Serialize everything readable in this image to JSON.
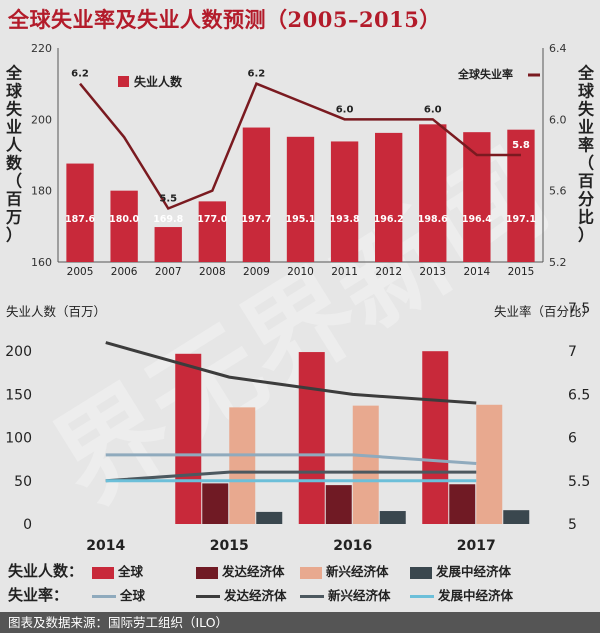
{
  "title": "全球失业率及失业人数预测（2005–2015）",
  "footer": "图表及数据来源：国际劳工组织（ILO）",
  "watermark": "界无界新闻",
  "colors": {
    "global": "#c8293a",
    "developed": "#701a24",
    "emerging": "#e8a98f",
    "developing": "#3a474e",
    "rate_global": "#8faabd",
    "rate_developed": "#3c3c3c",
    "rate_emerging": "#4c585f",
    "rate_developing": "#6cbfd9",
    "line_top": "#7a1a20"
  },
  "chart_data": [
    {
      "type": "bar+line",
      "categories": [
        "2005",
        "2006",
        "2007",
        "2008",
        "2009",
        "2010",
        "2011",
        "2012",
        "2013",
        "2014",
        "2015"
      ],
      "series": [
        {
          "name": "失业人数",
          "kind": "bar",
          "axis": "left",
          "values": [
            187.6,
            180.0,
            169.8,
            177.0,
            197.7,
            195.1,
            193.8,
            196.2,
            198.6,
            196.4,
            197.1
          ]
        },
        {
          "name": "全球失业率",
          "kind": "line",
          "axis": "right",
          "values": [
            6.2,
            5.9,
            5.5,
            5.6,
            6.2,
            6.1,
            6.0,
            6.0,
            6.0,
            5.8,
            5.8
          ]
        }
      ],
      "line_labels": [
        {
          "category": "2005",
          "text": "6.2"
        },
        {
          "category": "2007",
          "text": "5.5"
        },
        {
          "category": "2009",
          "text": "6.2"
        },
        {
          "category": "2011",
          "text": "6.0"
        },
        {
          "category": "2013",
          "text": "6.0"
        },
        {
          "category": "2015",
          "text": "5.8"
        }
      ],
      "ylabel_left": "全球失业人数（百万）",
      "ylabel_right": "全球失业率（百分比）",
      "ylim_left": [
        160,
        220
      ],
      "yticks_left": [
        "160",
        "180",
        "200",
        "220"
      ],
      "ylim_right": [
        5.2,
        6.4
      ],
      "yticks_right": [
        "5.2",
        "5.6",
        "6.0",
        "6.4"
      ],
      "legend_bar": "失业人数",
      "legend_line": "全球失业率"
    },
    {
      "type": "bar+line",
      "categories": [
        "2014",
        "2015",
        "2016",
        "2017"
      ],
      "bar_series": [
        {
          "name": "全球",
          "key": "global",
          "values": [
            null,
            197,
            199,
            200
          ]
        },
        {
          "name": "发达经济体",
          "key": "developed",
          "values": [
            null,
            47,
            45,
            46
          ]
        },
        {
          "name": "新兴经济体",
          "key": "emerging",
          "values": [
            null,
            135,
            137,
            138
          ]
        },
        {
          "name": "发展中经济体",
          "key": "developing",
          "values": [
            null,
            14,
            15,
            16
          ]
        }
      ],
      "line_series": [
        {
          "name": "全球",
          "key": "rate_global",
          "values": [
            5.8,
            5.8,
            5.8,
            5.7
          ]
        },
        {
          "name": "发达经济体",
          "key": "rate_developed",
          "values": [
            7.1,
            6.7,
            6.5,
            6.4
          ]
        },
        {
          "name": "新兴经济体",
          "key": "rate_emerging",
          "values": [
            5.5,
            5.6,
            5.6,
            5.6
          ]
        },
        {
          "name": "发展中经济体",
          "key": "rate_developing",
          "values": [
            5.5,
            5.5,
            5.5,
            5.5
          ]
        }
      ],
      "ylabel_left": "失业人数（百万）",
      "ylabel_right": "失业率（百分比）",
      "ylim_left": [
        0,
        250
      ],
      "yticks_left": [
        "0",
        "50",
        "100",
        "150",
        "200"
      ],
      "ylim_right": [
        5,
        7.5
      ],
      "yticks_right": [
        "5",
        "5.5",
        "6",
        "6.5",
        "7",
        "7.5"
      ]
    }
  ],
  "legend": {
    "row1_label": "失业人数：",
    "row2_label": "失业率：",
    "row1": [
      "全球",
      "发达经济体",
      "新兴经济体",
      "发展中经济体"
    ],
    "row2": [
      "全球",
      "发达经济体",
      "新兴经济体",
      "发展中经济体"
    ]
  }
}
